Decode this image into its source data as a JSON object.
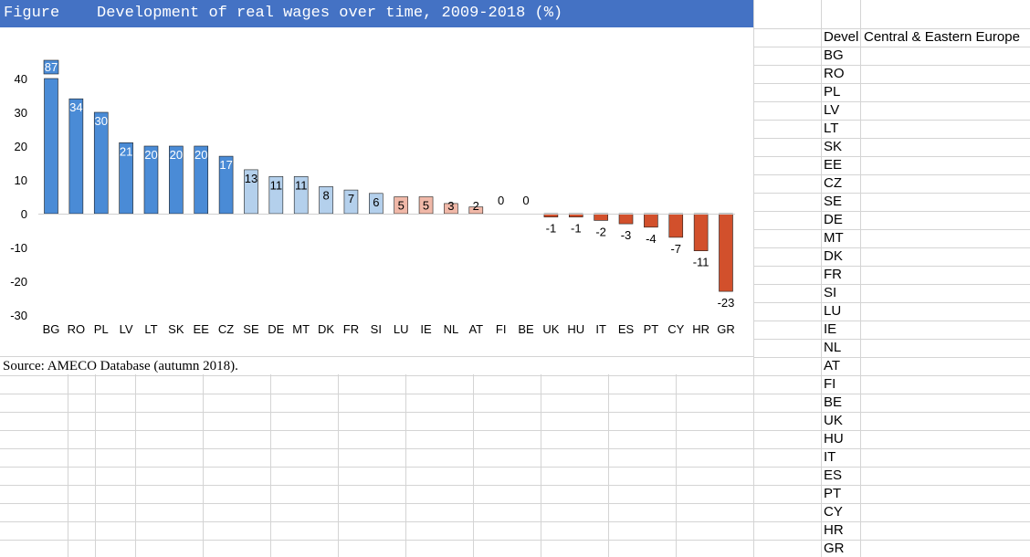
{
  "figure_label": "Figure",
  "figure_title": "Development of real wages over time, 2009-2018 (%)",
  "source_note": "Source: AMECO Database (autumn 2018).",
  "side_panel": {
    "header_short": "Devel",
    "header_region": "Central & Eastern Europe",
    "countries": [
      "BG",
      "RO",
      "PL",
      "LV",
      "LT",
      "SK",
      "EE",
      "CZ",
      "SE",
      "DE",
      "MT",
      "DK",
      "FR",
      "SI",
      "LU",
      "IE",
      "NL",
      "AT",
      "FI",
      "BE",
      "UK",
      "HU",
      "IT",
      "ES",
      "PT",
      "CY",
      "HR",
      "GR"
    ]
  },
  "colors": {
    "title_bar": "#4472c4",
    "cee_bar": "#4a8bd6",
    "mid_positive_bar": "#b4d0ec",
    "low_positive_bar": "#f0b8a8",
    "negative_bar": "#d2502c",
    "gridline": "#d4d4d4"
  },
  "chart_data": {
    "type": "bar",
    "title": "Development of real wages over time, 2009-2018 (%)",
    "xlabel": "",
    "ylabel": "",
    "ylim": [
      -30,
      40
    ],
    "yticks": [
      -30,
      -20,
      -10,
      0,
      10,
      20,
      30,
      40
    ],
    "categories": [
      "BG",
      "RO",
      "PL",
      "LV",
      "LT",
      "SK",
      "EE",
      "CZ",
      "SE",
      "DE",
      "MT",
      "DK",
      "FR",
      "SI",
      "LU",
      "IE",
      "NL",
      "AT",
      "FI",
      "BE",
      "UK",
      "HU",
      "IT",
      "ES",
      "PT",
      "CY",
      "HR",
      "GR"
    ],
    "values": [
      87,
      34,
      30,
      21,
      20,
      20,
      20,
      17,
      13,
      11,
      11,
      8,
      7,
      6,
      5,
      5,
      3,
      2,
      0,
      0,
      -1,
      -1,
      -2,
      -3,
      -4,
      -7,
      -11,
      -23
    ],
    "data_labels": [
      "87",
      "34",
      "30",
      "21",
      "20",
      "20",
      "20",
      "17",
      "13",
      "11",
      "11",
      "8",
      "7",
      "6",
      "5",
      "5",
      "3",
      "2",
      "0",
      "0",
      "-1",
      "-1",
      "-2",
      "-3",
      "-4",
      "-7",
      "-11",
      "-23"
    ],
    "bar_groups": [
      "cee",
      "cee",
      "cee",
      "cee",
      "cee",
      "cee",
      "cee",
      "cee",
      "mid",
      "mid",
      "mid",
      "mid",
      "mid",
      "mid",
      "low",
      "low",
      "low",
      "low",
      "low",
      "low",
      "neg",
      "neg",
      "neg",
      "neg",
      "neg",
      "neg",
      "neg",
      "neg"
    ],
    "grid": false,
    "legend": "none"
  }
}
